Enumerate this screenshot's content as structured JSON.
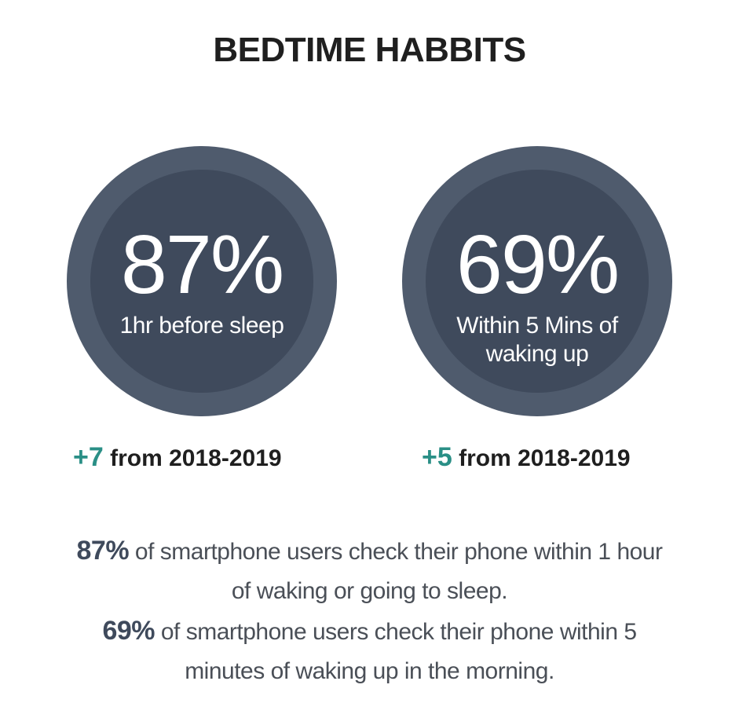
{
  "title": "BEDTIME HABBITS",
  "stats": [
    {
      "percent": "87%",
      "caption": "1hr before sleep",
      "change_value": "+7",
      "change_text": "from 2018-2019"
    },
    {
      "percent": "69%",
      "caption": "Within 5 Mins of waking up",
      "change_value": "+5",
      "change_text": "from 2018-2019"
    }
  ],
  "summary": [
    {
      "highlight": "87%",
      "text": "of smartphone users check their phone within 1 hour of waking or going to sleep."
    },
    {
      "highlight": "69%",
      "text": "of smartphone users check their phone within 5 minutes of waking up in the morning."
    }
  ],
  "colors": {
    "ring": "#4f5b6d",
    "disc": "#3f4a5c",
    "accent": "#2a8f86",
    "title": "#1f1f1f",
    "body_text": "#4a4f57"
  }
}
